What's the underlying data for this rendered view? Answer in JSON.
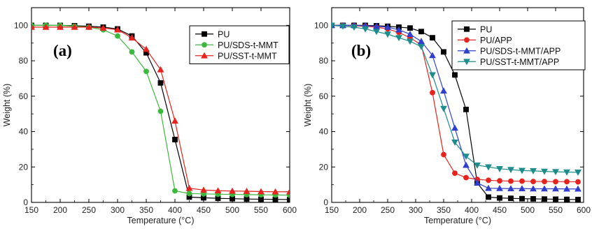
{
  "chart_data": [
    {
      "type": "line",
      "panel_label": "(a)",
      "xlabel": "Temperature (°C)",
      "ylabel": "Weight (%)",
      "xlim": [
        150,
        600
      ],
      "ylim": [
        0,
        110
      ],
      "x_ticks": [
        150,
        200,
        250,
        300,
        350,
        400,
        450,
        500,
        550,
        600
      ],
      "y_ticks": [
        0,
        20,
        40,
        60,
        80,
        100
      ],
      "legend_position": "top-right",
      "series": [
        {
          "name": "PU",
          "color": "#000000",
          "marker": "square",
          "x": [
            150,
            175,
            200,
            225,
            250,
            275,
            300,
            325,
            350,
            375,
            400,
            425,
            450,
            475,
            500,
            525,
            550,
            575,
            600
          ],
          "y": [
            100,
            100,
            100,
            99.8,
            99.5,
            99,
            98,
            94,
            84.5,
            67.5,
            35.5,
            3,
            2.6,
            2.3,
            2.1,
            1.9,
            1.8,
            1.7,
            1.6
          ]
        },
        {
          "name": "PU/SDS-t-MMT",
          "color": "#3cb93c",
          "marker": "circle",
          "x": [
            150,
            175,
            200,
            225,
            250,
            275,
            300,
            325,
            350,
            375,
            400,
            425,
            450,
            475,
            500,
            525,
            550,
            575,
            600
          ],
          "y": [
            100,
            100,
            100,
            99.5,
            99,
            97.5,
            94,
            85,
            74,
            51.5,
            6.5,
            5,
            4.8,
            4.6,
            4.5,
            4.4,
            4.3,
            4.2,
            4.1
          ]
        },
        {
          "name": "PU/SST-t-MMT",
          "color": "#e8221c",
          "marker": "triangle",
          "x": [
            150,
            175,
            200,
            225,
            250,
            275,
            300,
            325,
            350,
            375,
            400,
            425,
            450,
            475,
            500,
            525,
            550,
            575,
            600
          ],
          "y": [
            99,
            99,
            99,
            99,
            99,
            98.5,
            97.5,
            93,
            86.5,
            75,
            46,
            8,
            7,
            6.6,
            6.4,
            6.3,
            6.1,
            6,
            6
          ]
        }
      ]
    },
    {
      "type": "line",
      "panel_label": "(b)",
      "xlabel": "Temperature (°C)",
      "ylabel": "Weight (%)",
      "xlim": [
        150,
        600
      ],
      "ylim": [
        0,
        110
      ],
      "x_ticks": [
        150,
        200,
        250,
        300,
        350,
        400,
        450,
        500,
        550,
        600
      ],
      "y_ticks": [
        0,
        20,
        40,
        60,
        80,
        100
      ],
      "legend_position": "top-right",
      "series": [
        {
          "name": "PU",
          "color": "#000000",
          "marker": "square",
          "x": [
            150,
            170,
            190,
            210,
            230,
            250,
            270,
            290,
            310,
            330,
            350,
            370,
            390,
            410,
            430,
            450,
            470,
            490,
            510,
            530,
            550,
            570,
            590
          ],
          "y": [
            100,
            100,
            100,
            100,
            99.8,
            99.5,
            99,
            98.5,
            96.5,
            93,
            85,
            72,
            52.5,
            11,
            3,
            2.5,
            2.3,
            2.1,
            2,
            1.9,
            1.8,
            1.7,
            1.6
          ]
        },
        {
          "name": "PU/APP",
          "color": "#e8221c",
          "marker": "circle",
          "x": [
            150,
            170,
            190,
            210,
            230,
            250,
            270,
            290,
            310,
            330,
            350,
            370,
            390,
            410,
            430,
            450,
            470,
            490,
            510,
            530,
            550,
            570,
            590
          ],
          "y": [
            100,
            100,
            99.8,
            99.5,
            99,
            98,
            96,
            93,
            89,
            62,
            27,
            16.5,
            14,
            13,
            12.5,
            12.2,
            12,
            12,
            11.8,
            11.8,
            11.7,
            11.7,
            11.6
          ]
        },
        {
          "name": "PU/SDS-t-MMT/APP",
          "color": "#2f3fcc",
          "marker": "triangle",
          "x": [
            150,
            170,
            190,
            210,
            230,
            250,
            270,
            290,
            310,
            330,
            350,
            370,
            390,
            410,
            430,
            450,
            470,
            490,
            510,
            530,
            550,
            570,
            590
          ],
          "y": [
            100,
            100,
            100,
            99.8,
            99.5,
            99,
            97.5,
            95,
            91,
            83,
            63,
            42,
            21,
            11,
            8,
            7.9,
            7.8,
            7.8,
            7.7,
            7.7,
            7.7,
            7.6,
            7.6
          ]
        },
        {
          "name": "PU/SST-t-MMT/APP",
          "color": "#1d8c8c",
          "marker": "triangle-down",
          "x": [
            150,
            170,
            190,
            210,
            230,
            250,
            270,
            290,
            310,
            330,
            350,
            370,
            390,
            410,
            430,
            450,
            470,
            490,
            510,
            530,
            550,
            570,
            590
          ],
          "y": [
            100,
            99.5,
            99,
            98,
            96.5,
            95,
            93,
            91,
            88,
            72,
            53,
            34,
            26,
            21,
            20,
            19,
            18.5,
            18,
            17.8,
            17.5,
            17.3,
            17.1,
            17
          ]
        }
      ]
    }
  ]
}
